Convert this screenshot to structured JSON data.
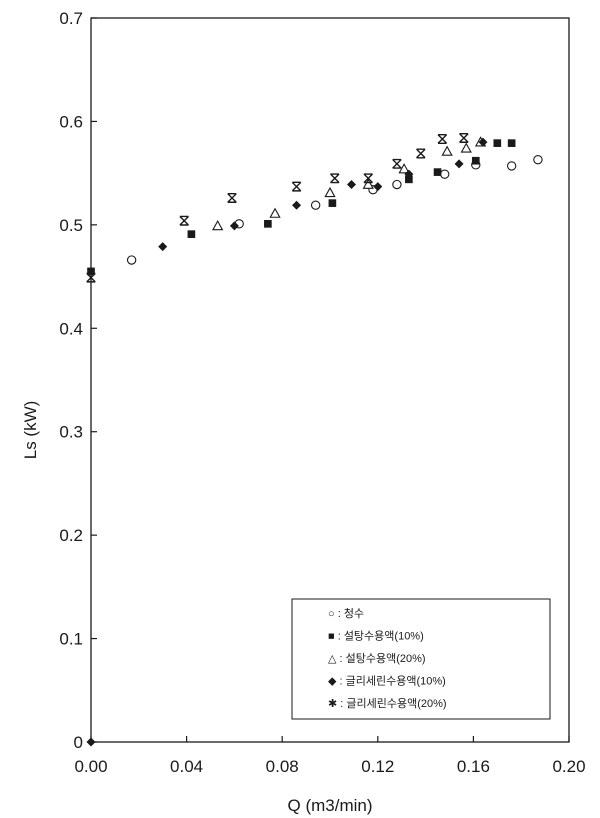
{
  "chart_data": {
    "type": "scatter",
    "title": "",
    "xlabel": "Q (m3/min)",
    "ylabel": "Ls (kW)",
    "xlim": [
      0,
      0.2
    ],
    "ylim": [
      0,
      0.7
    ],
    "xticks": [
      0,
      0.04,
      0.08,
      0.12,
      0.16,
      0.2
    ],
    "xtick_labels": [
      "0.00",
      "0.04",
      "0.08",
      "0.12",
      "0.16",
      "0.20"
    ],
    "yticks": [
      0,
      0.1,
      0.2,
      0.3,
      0.4,
      0.5,
      0.6,
      0.7
    ],
    "ytick_labels": [
      "0",
      "0.1",
      "0.2",
      "0.3",
      "0.4",
      "0.5",
      "0.6",
      "0.7"
    ],
    "grid": false,
    "legend_position": "bottom-right",
    "series": [
      {
        "name": "○ : 청수",
        "marker": "open-circle",
        "color": "#1a1a1a",
        "points": [
          [
            0.017,
            0.466
          ],
          [
            0.062,
            0.501
          ],
          [
            0.094,
            0.519
          ],
          [
            0.118,
            0.534
          ],
          [
            0.128,
            0.539
          ],
          [
            0.148,
            0.549
          ],
          [
            0.161,
            0.558
          ],
          [
            0.176,
            0.557
          ],
          [
            0.187,
            0.563
          ]
        ]
      },
      {
        "name": "■ : 설탕수용액(10%)",
        "marker": "filled-square",
        "color": "#1a1a1a",
        "points": [
          [
            0.0,
            0.455
          ],
          [
            0.042,
            0.491
          ],
          [
            0.074,
            0.501
          ],
          [
            0.101,
            0.521
          ],
          [
            0.133,
            0.544
          ],
          [
            0.145,
            0.551
          ],
          [
            0.161,
            0.562
          ],
          [
            0.17,
            0.579
          ],
          [
            0.176,
            0.579
          ]
        ]
      },
      {
        "name": "△ : 설탕수용액(20%)",
        "marker": "open-triangle",
        "color": "#1a1a1a",
        "points": [
          [
            0.053,
            0.499
          ],
          [
            0.077,
            0.511
          ],
          [
            0.1,
            0.531
          ],
          [
            0.116,
            0.539
          ],
          [
            0.131,
            0.554
          ],
          [
            0.149,
            0.571
          ],
          [
            0.157,
            0.574
          ],
          [
            0.163,
            0.58
          ]
        ]
      },
      {
        "name": "◆ : 글리세린수용액(10%)",
        "marker": "filled-diamond",
        "color": "#1a1a1a",
        "points": [
          [
            0.0,
            0.0
          ],
          [
            0.03,
            0.479
          ],
          [
            0.06,
            0.499
          ],
          [
            0.086,
            0.519
          ],
          [
            0.109,
            0.539
          ],
          [
            0.12,
            0.537
          ],
          [
            0.133,
            0.549
          ],
          [
            0.154,
            0.559
          ],
          [
            0.164,
            0.58
          ]
        ]
      },
      {
        "name": "✱ : 글리세린수용액(20%)",
        "marker": "asterisk",
        "color": "#1a1a1a",
        "points": [
          [
            0.0,
            0.449
          ],
          [
            0.039,
            0.504
          ],
          [
            0.059,
            0.526
          ],
          [
            0.086,
            0.537
          ],
          [
            0.102,
            0.545
          ],
          [
            0.116,
            0.545
          ],
          [
            0.128,
            0.559
          ],
          [
            0.138,
            0.569
          ],
          [
            0.147,
            0.583
          ],
          [
            0.156,
            0.584
          ]
        ]
      }
    ]
  }
}
